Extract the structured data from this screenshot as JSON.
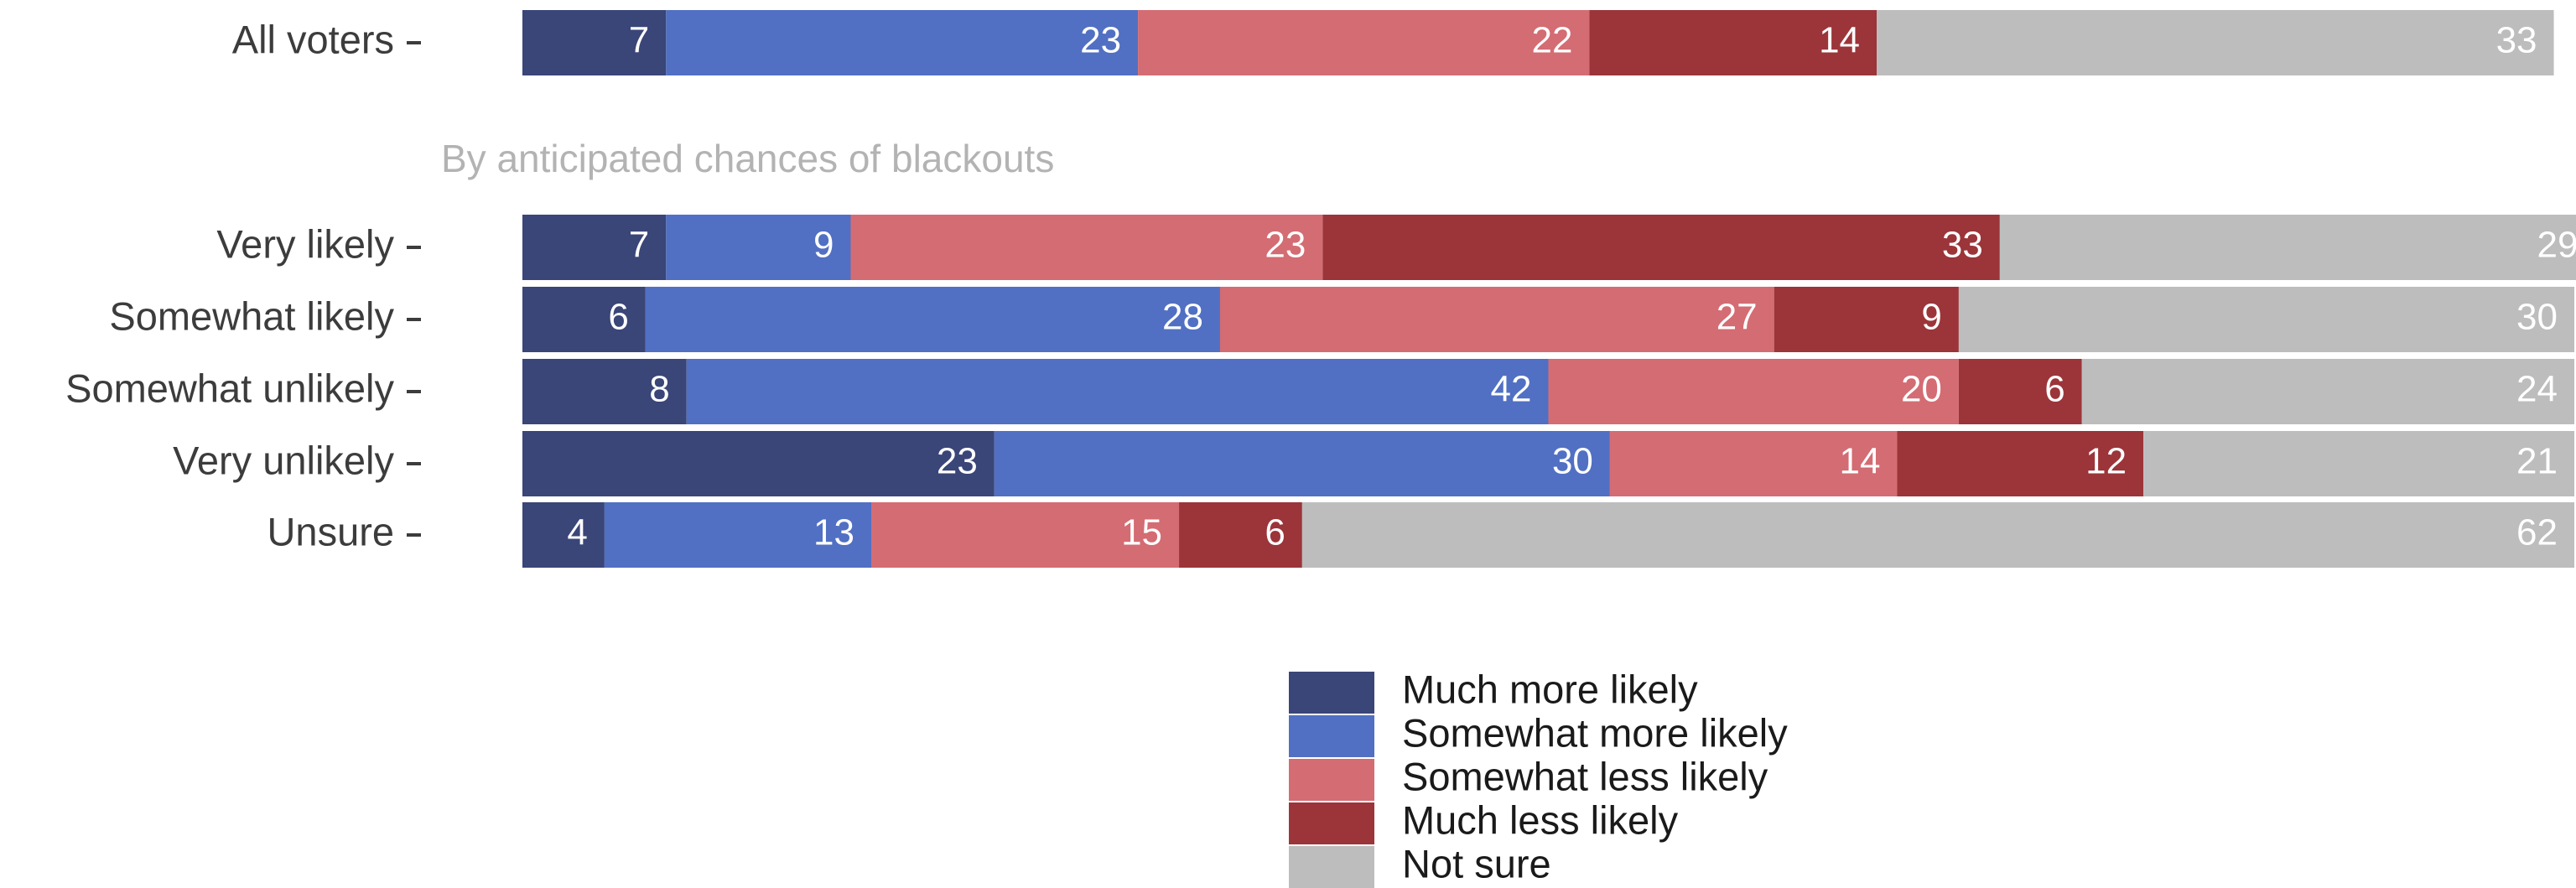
{
  "chart_data": {
    "type": "bar",
    "orientation": "horizontal",
    "stacked": true,
    "normalized_percent": true,
    "title": "",
    "xlabel": "",
    "ylabel": "",
    "xlim": [
      0,
      100
    ],
    "grid": false,
    "legend_position": "bottom",
    "groups": [
      {
        "title": "",
        "categories": [
          "All voters"
        ],
        "series_values": [
          [
            7
          ],
          [
            23
          ],
          [
            22
          ],
          [
            14
          ],
          [
            33
          ]
        ]
      },
      {
        "title": "By anticipated chances of blackouts",
        "categories": [
          "Very likely",
          "Somewhat likely",
          "Somewhat unlikely",
          "Very unlikely",
          "Unsure"
        ],
        "series_values": [
          [
            7,
            6,
            8,
            23,
            4
          ],
          [
            9,
            28,
            42,
            30,
            13
          ],
          [
            23,
            27,
            20,
            14,
            15
          ],
          [
            33,
            9,
            6,
            12,
            6
          ],
          [
            29,
            30,
            24,
            21,
            62
          ]
        ]
      }
    ],
    "series": [
      {
        "name": "Much more likely",
        "color": "#3a4578"
      },
      {
        "name": "Somewhat more likely",
        "color": "#5170c3"
      },
      {
        "name": "Somewhat less likely",
        "color": "#d46c73"
      },
      {
        "name": "Much less likely",
        "color": "#9b3539"
      },
      {
        "name": "Not sure",
        "color": "#bdbdbd"
      }
    ]
  }
}
